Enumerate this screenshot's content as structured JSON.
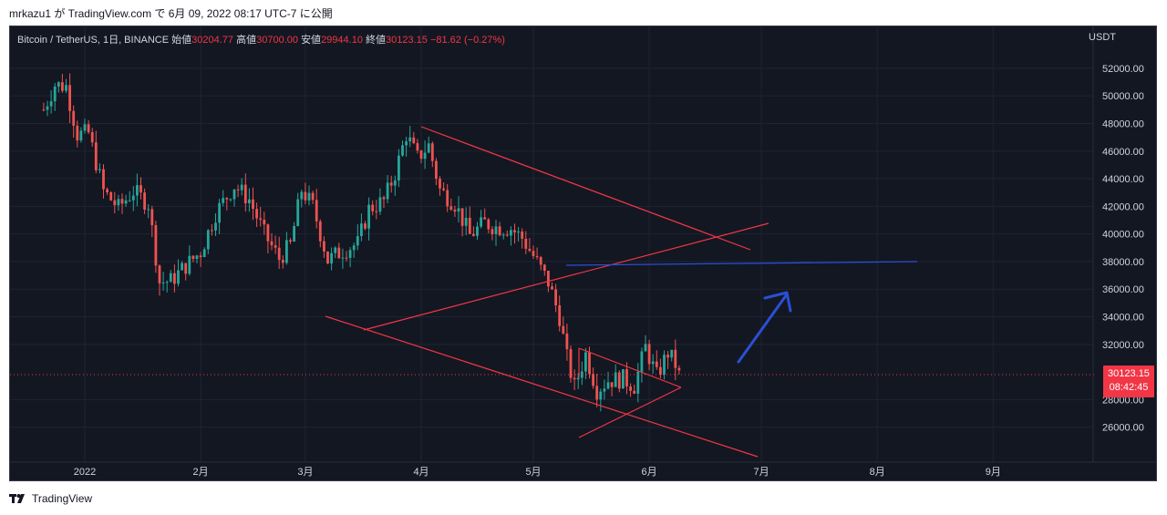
{
  "caption": "mrkazu1 が TradingView.com で 6月 09, 2022 08:17 UTC-7 に公開",
  "legend": {
    "symbol": "Bitcoin / TetherUS, 1日, BINANCE",
    "open_label": "始値",
    "open": "30204.77",
    "high_label": "高値",
    "high": "30700.00",
    "low_label": "安値",
    "low": "29944.10",
    "close_label": "終値",
    "close": "30123.15",
    "change": "−81.62 (−0.27%)"
  },
  "currency": "USDT",
  "last_price": {
    "price": "30123.15",
    "countdown": "08:42:45"
  },
  "footer": {
    "brand": "TradingView",
    "logo_icon": "tradingview-logo-icon"
  },
  "colors": {
    "background": "#131722",
    "up": "#26a69a",
    "down": "#ef5350",
    "drawing_red": "#f23645",
    "drawing_blue": "#2a4fd6",
    "grid": "#1f2433"
  },
  "chart_data": {
    "type": "candlestick",
    "title": "Bitcoin / TetherUS, 1日, BINANCE",
    "xlabel": "",
    "ylabel": "",
    "ylim": [
      24000,
      54500
    ],
    "grid": true,
    "x_ticks": [
      "2022",
      "2月",
      "3月",
      "4月",
      "5月",
      "6月",
      "7月",
      "8月",
      "9月"
    ],
    "y_ticks": [
      "52000.00",
      "50000.00",
      "48000.00",
      "46000.00",
      "44000.00",
      "42000.00",
      "40000.00",
      "38000.00",
      "36000.00",
      "34000.00",
      "32000.00",
      "28000.00",
      "26000.00"
    ],
    "series": [
      {
        "values": [
          {
            "date": "2021-12-21",
            "close": 49000
          },
          {
            "date": "2021-12-24",
            "close": 50800
          },
          {
            "date": "2021-12-27",
            "close": 50700
          },
          {
            "date": "2021-12-30",
            "close": 47200
          },
          {
            "date": "2022-01-02",
            "close": 47300
          },
          {
            "date": "2022-01-06",
            "close": 43100
          },
          {
            "date": "2022-01-10",
            "close": 41900
          },
          {
            "date": "2022-01-14",
            "close": 43100
          },
          {
            "date": "2022-01-18",
            "close": 42200
          },
          {
            "date": "2022-01-21",
            "close": 36500
          },
          {
            "date": "2022-01-24",
            "close": 36600
          },
          {
            "date": "2022-01-28",
            "close": 37700
          },
          {
            "date": "2022-02-01",
            "close": 38700
          },
          {
            "date": "2022-02-05",
            "close": 41500
          },
          {
            "date": "2022-02-10",
            "close": 43500
          },
          {
            "date": "2022-02-14",
            "close": 42500
          },
          {
            "date": "2022-02-18",
            "close": 40000
          },
          {
            "date": "2022-02-22",
            "close": 38200
          },
          {
            "date": "2022-02-25",
            "close": 39200
          },
          {
            "date": "2022-02-28",
            "close": 43200
          },
          {
            "date": "2022-03-03",
            "close": 42000
          },
          {
            "date": "2022-03-07",
            "close": 38100
          },
          {
            "date": "2022-03-11",
            "close": 38800
          },
          {
            "date": "2022-03-15",
            "close": 39300
          },
          {
            "date": "2022-03-18",
            "close": 41800
          },
          {
            "date": "2022-03-22",
            "close": 42400
          },
          {
            "date": "2022-03-25",
            "close": 44400
          },
          {
            "date": "2022-03-28",
            "close": 47200
          },
          {
            "date": "2022-03-31",
            "close": 45500
          },
          {
            "date": "2022-04-03",
            "close": 46400
          },
          {
            "date": "2022-04-06",
            "close": 43200
          },
          {
            "date": "2022-04-10",
            "close": 42200
          },
          {
            "date": "2022-04-14",
            "close": 39900
          },
          {
            "date": "2022-04-18",
            "close": 40800
          },
          {
            "date": "2022-04-21",
            "close": 40500
          },
          {
            "date": "2022-04-25",
            "close": 40400
          },
          {
            "date": "2022-04-28",
            "close": 39700
          },
          {
            "date": "2022-05-01",
            "close": 38400
          },
          {
            "date": "2022-05-05",
            "close": 36500
          },
          {
            "date": "2022-05-08",
            "close": 34000
          },
          {
            "date": "2022-05-10",
            "close": 31000
          },
          {
            "date": "2022-05-12",
            "close": 28900
          },
          {
            "date": "2022-05-15",
            "close": 31300
          },
          {
            "date": "2022-05-18",
            "close": 28700
          },
          {
            "date": "2022-05-21",
            "close": 29400
          },
          {
            "date": "2022-05-25",
            "close": 29500
          },
          {
            "date": "2022-05-28",
            "close": 29000
          },
          {
            "date": "2022-05-31",
            "close": 31800
          },
          {
            "date": "2022-06-03",
            "close": 29700
          },
          {
            "date": "2022-06-06",
            "close": 31400
          },
          {
            "date": "2022-06-09",
            "close": 30123.15
          }
        ]
      }
    ]
  }
}
